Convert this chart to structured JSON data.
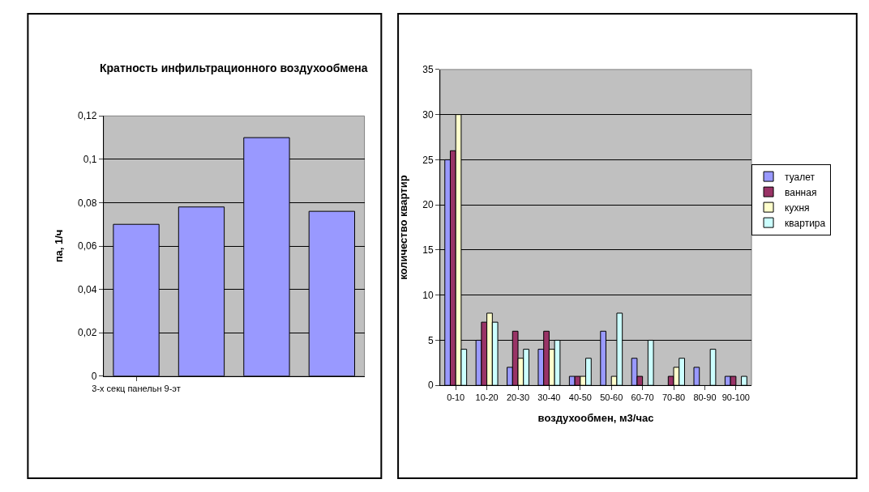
{
  "chart_data": [
    {
      "type": "bar",
      "title": "Кратность инфильтрационного воздухообмена",
      "ylabel": "па, 1/ч",
      "categories": [
        "3-х секц панельн 9-эт",
        null,
        null,
        null
      ],
      "series": [
        {
          "color": "#9999ff",
          "values": [
            0.07,
            0.078,
            0.11,
            0.076
          ]
        }
      ],
      "ylim": [
        0,
        0.12
      ],
      "yticks": [
        {
          "value": 0,
          "label": "0"
        },
        {
          "value": 0.02,
          "label": "0,02"
        },
        {
          "value": 0.04,
          "label": "0,04"
        },
        {
          "value": 0.06,
          "label": "0,06"
        },
        {
          "value": 0.08,
          "label": "0,08"
        },
        {
          "value": 0.1,
          "label": "0,1"
        },
        {
          "value": 0.12,
          "label": "0,12"
        }
      ],
      "grid": "y",
      "legend": false
    },
    {
      "type": "bar",
      "xlabel": "воздухообмен, м3/час",
      "ylabel": "количество квартир",
      "categories": [
        "0-10",
        "10-20",
        "20-30",
        "30-40",
        "40-50",
        "50-60",
        "60-70",
        "70-80",
        "80-90",
        "90-100"
      ],
      "series": [
        {
          "name": "туалет",
          "color": "#9999ff",
          "values": [
            25,
            5,
            2,
            4,
            1,
            6,
            3,
            0,
            2,
            1
          ]
        },
        {
          "name": "ванная",
          "color": "#993366",
          "values": [
            26,
            7,
            6,
            6,
            1,
            0,
            1,
            1,
            0,
            1
          ]
        },
        {
          "name": "кухня",
          "color": "#ffffcc",
          "values": [
            30,
            8,
            3,
            4,
            1,
            1,
            0,
            2,
            0,
            0
          ]
        },
        {
          "name": "квартира",
          "color": "#ccffff",
          "values": [
            4,
            7,
            4,
            5,
            3,
            8,
            5,
            3,
            4,
            1
          ]
        }
      ],
      "ylim": [
        0,
        35
      ],
      "yticks": [
        0,
        5,
        10,
        15,
        20,
        25,
        30,
        35
      ],
      "grid": "y",
      "legend": "right"
    }
  ]
}
